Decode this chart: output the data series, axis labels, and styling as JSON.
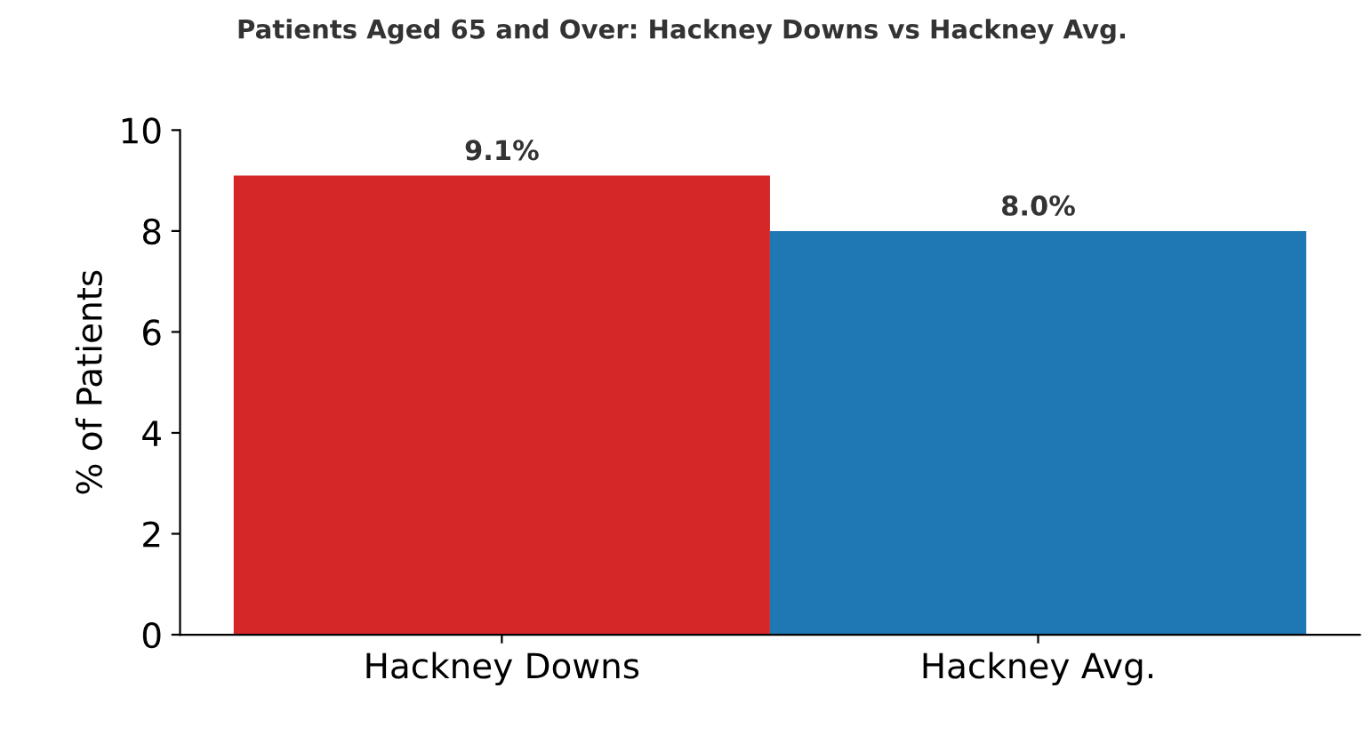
{
  "chart_data": {
    "type": "bar",
    "title": "Patients Aged 65 and Over: Hackney Downs vs Hackney Avg.",
    "ylabel": "% of Patients",
    "categories": [
      "Hackney Downs",
      "Hackney Avg."
    ],
    "values": [
      9.1,
      8.0
    ],
    "value_labels": [
      "9.1%",
      "8.0%"
    ],
    "colors": [
      "#d62728",
      "#1f77b4"
    ],
    "ylim": [
      0,
      10
    ],
    "yticks": [
      0,
      2,
      4,
      6,
      8,
      10
    ],
    "grid": false,
    "legend": false
  }
}
